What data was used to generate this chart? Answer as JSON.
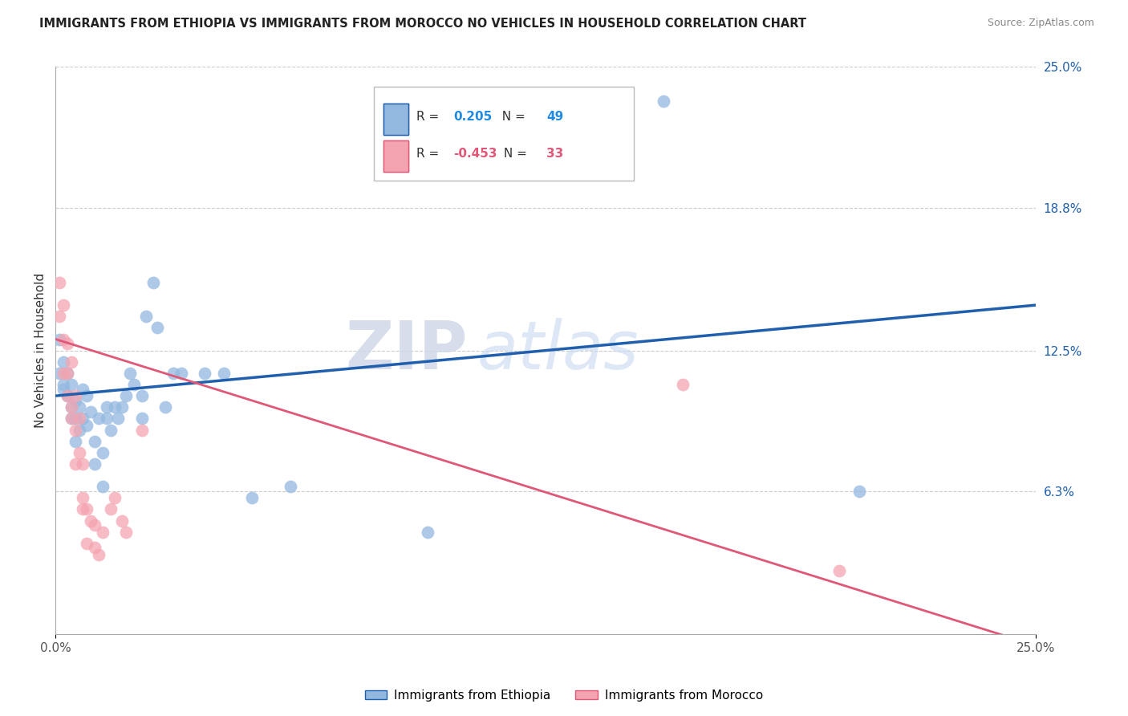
{
  "title": "IMMIGRANTS FROM ETHIOPIA VS IMMIGRANTS FROM MOROCCO NO VEHICLES IN HOUSEHOLD CORRELATION CHART",
  "source": "Source: ZipAtlas.com",
  "ylabel": "No Vehicles in Household",
  "watermark_bold": "ZIP",
  "watermark_light": "atlas",
  "xlim": [
    0.0,
    0.25
  ],
  "ylim": [
    0.0,
    0.25
  ],
  "ytick_vals_right": [
    0.25,
    0.188,
    0.125,
    0.063
  ],
  "ytick_labels_right": [
    "25.0%",
    "18.8%",
    "12.5%",
    "6.3%"
  ],
  "blue_R": "0.205",
  "blue_N": "49",
  "pink_R": "-0.453",
  "pink_N": "33",
  "blue_color": "#93B8E0",
  "pink_color": "#F4A4B0",
  "blue_line_color": "#1F5FAD",
  "pink_line_color": "#E05878",
  "blue_R_color": "#1F8AE0",
  "pink_R_color": "#E05878",
  "blue_N_color": "#1F8AE0",
  "pink_N_color": "#E05878",
  "legend_label_blue": "Immigrants from Ethiopia",
  "legend_label_pink": "Immigrants from Morocco",
  "blue_scatter": [
    [
      0.001,
      0.13
    ],
    [
      0.001,
      0.115
    ],
    [
      0.002,
      0.12
    ],
    [
      0.002,
      0.11
    ],
    [
      0.002,
      0.108
    ],
    [
      0.003,
      0.105
    ],
    [
      0.003,
      0.115
    ],
    [
      0.004,
      0.1
    ],
    [
      0.004,
      0.095
    ],
    [
      0.004,
      0.11
    ],
    [
      0.005,
      0.103
    ],
    [
      0.005,
      0.095
    ],
    [
      0.005,
      0.085
    ],
    [
      0.006,
      0.1
    ],
    [
      0.006,
      0.09
    ],
    [
      0.007,
      0.108
    ],
    [
      0.007,
      0.095
    ],
    [
      0.008,
      0.105
    ],
    [
      0.008,
      0.092
    ],
    [
      0.009,
      0.098
    ],
    [
      0.01,
      0.085
    ],
    [
      0.01,
      0.075
    ],
    [
      0.011,
      0.095
    ],
    [
      0.012,
      0.065
    ],
    [
      0.012,
      0.08
    ],
    [
      0.013,
      0.1
    ],
    [
      0.013,
      0.095
    ],
    [
      0.014,
      0.09
    ],
    [
      0.015,
      0.1
    ],
    [
      0.016,
      0.095
    ],
    [
      0.017,
      0.1
    ],
    [
      0.018,
      0.105
    ],
    [
      0.019,
      0.115
    ],
    [
      0.02,
      0.11
    ],
    [
      0.022,
      0.095
    ],
    [
      0.022,
      0.105
    ],
    [
      0.023,
      0.14
    ],
    [
      0.025,
      0.155
    ],
    [
      0.026,
      0.135
    ],
    [
      0.028,
      0.1
    ],
    [
      0.03,
      0.115
    ],
    [
      0.032,
      0.115
    ],
    [
      0.038,
      0.115
    ],
    [
      0.043,
      0.115
    ],
    [
      0.05,
      0.06
    ],
    [
      0.06,
      0.065
    ],
    [
      0.095,
      0.045
    ],
    [
      0.155,
      0.235
    ],
    [
      0.205,
      0.063
    ]
  ],
  "pink_scatter": [
    [
      0.001,
      0.155
    ],
    [
      0.001,
      0.14
    ],
    [
      0.002,
      0.145
    ],
    [
      0.002,
      0.13
    ],
    [
      0.002,
      0.115
    ],
    [
      0.003,
      0.128
    ],
    [
      0.003,
      0.115
    ],
    [
      0.003,
      0.105
    ],
    [
      0.004,
      0.1
    ],
    [
      0.004,
      0.095
    ],
    [
      0.004,
      0.12
    ],
    [
      0.005,
      0.105
    ],
    [
      0.005,
      0.09
    ],
    [
      0.005,
      0.075
    ],
    [
      0.006,
      0.095
    ],
    [
      0.006,
      0.08
    ],
    [
      0.007,
      0.075
    ],
    [
      0.007,
      0.06
    ],
    [
      0.007,
      0.055
    ],
    [
      0.008,
      0.055
    ],
    [
      0.008,
      0.04
    ],
    [
      0.009,
      0.05
    ],
    [
      0.01,
      0.048
    ],
    [
      0.01,
      0.038
    ],
    [
      0.011,
      0.035
    ],
    [
      0.012,
      0.045
    ],
    [
      0.014,
      0.055
    ],
    [
      0.015,
      0.06
    ],
    [
      0.017,
      0.05
    ],
    [
      0.018,
      0.045
    ],
    [
      0.022,
      0.09
    ],
    [
      0.16,
      0.11
    ],
    [
      0.2,
      0.028
    ]
  ],
  "blue_line_y0": 0.105,
  "blue_line_y1": 0.145,
  "pink_line_y0": 0.13,
  "pink_line_y1": -0.005
}
